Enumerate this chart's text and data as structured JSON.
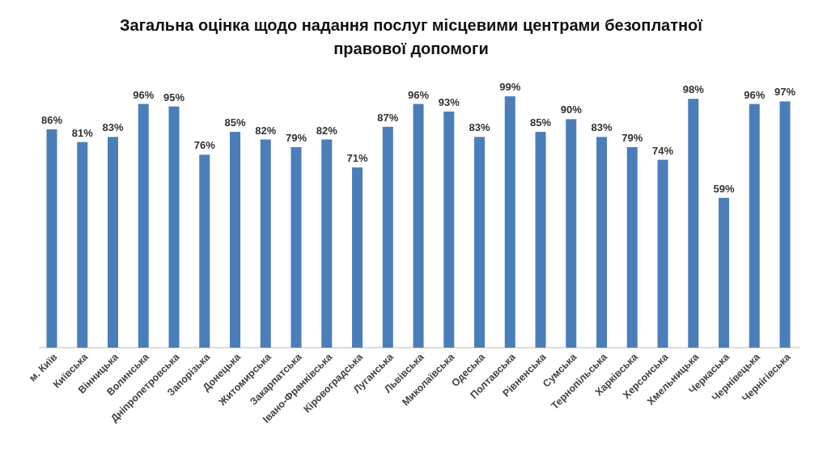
{
  "chart_data": {
    "type": "bar",
    "title": "Загальна оцінка щодо надання послуг місцевими центрами безоплатної правової допомоги",
    "categories": [
      "м. Київ",
      "Київська",
      "Вінницька",
      "Волинська",
      "Дніпропетровська",
      "Запорізька",
      "Донецька",
      "Житомирська",
      "Закарпатська",
      "Івано-Франківська",
      "Кіровоградська",
      "Луганська",
      "Львівська",
      "Миколаївська",
      "Одеська",
      "Полтавська",
      "Рівненська",
      "Сумська",
      "Тернопільська",
      "Харківська",
      "Херсонська",
      "Хмельницька",
      "Черкаська",
      "Чернівецька",
      "Чернігівська"
    ],
    "values": [
      86,
      81,
      83,
      96,
      95,
      76,
      85,
      82,
      79,
      82,
      71,
      87,
      96,
      93,
      83,
      99,
      85,
      90,
      83,
      79,
      74,
      98,
      59,
      96,
      97
    ],
    "value_labels": [
      "86%",
      "81%",
      "83%",
      "96%",
      "95%",
      "76%",
      "85%",
      "82%",
      "79%",
      "82%",
      "71%",
      "87%",
      "96%",
      "93%",
      "83%",
      "99%",
      "85%",
      "90%",
      "83%",
      "79%",
      "74%",
      "98%",
      "59%",
      "96%",
      "97%"
    ],
    "color": "#4a7ebb",
    "ylim": [
      0,
      100
    ]
  }
}
